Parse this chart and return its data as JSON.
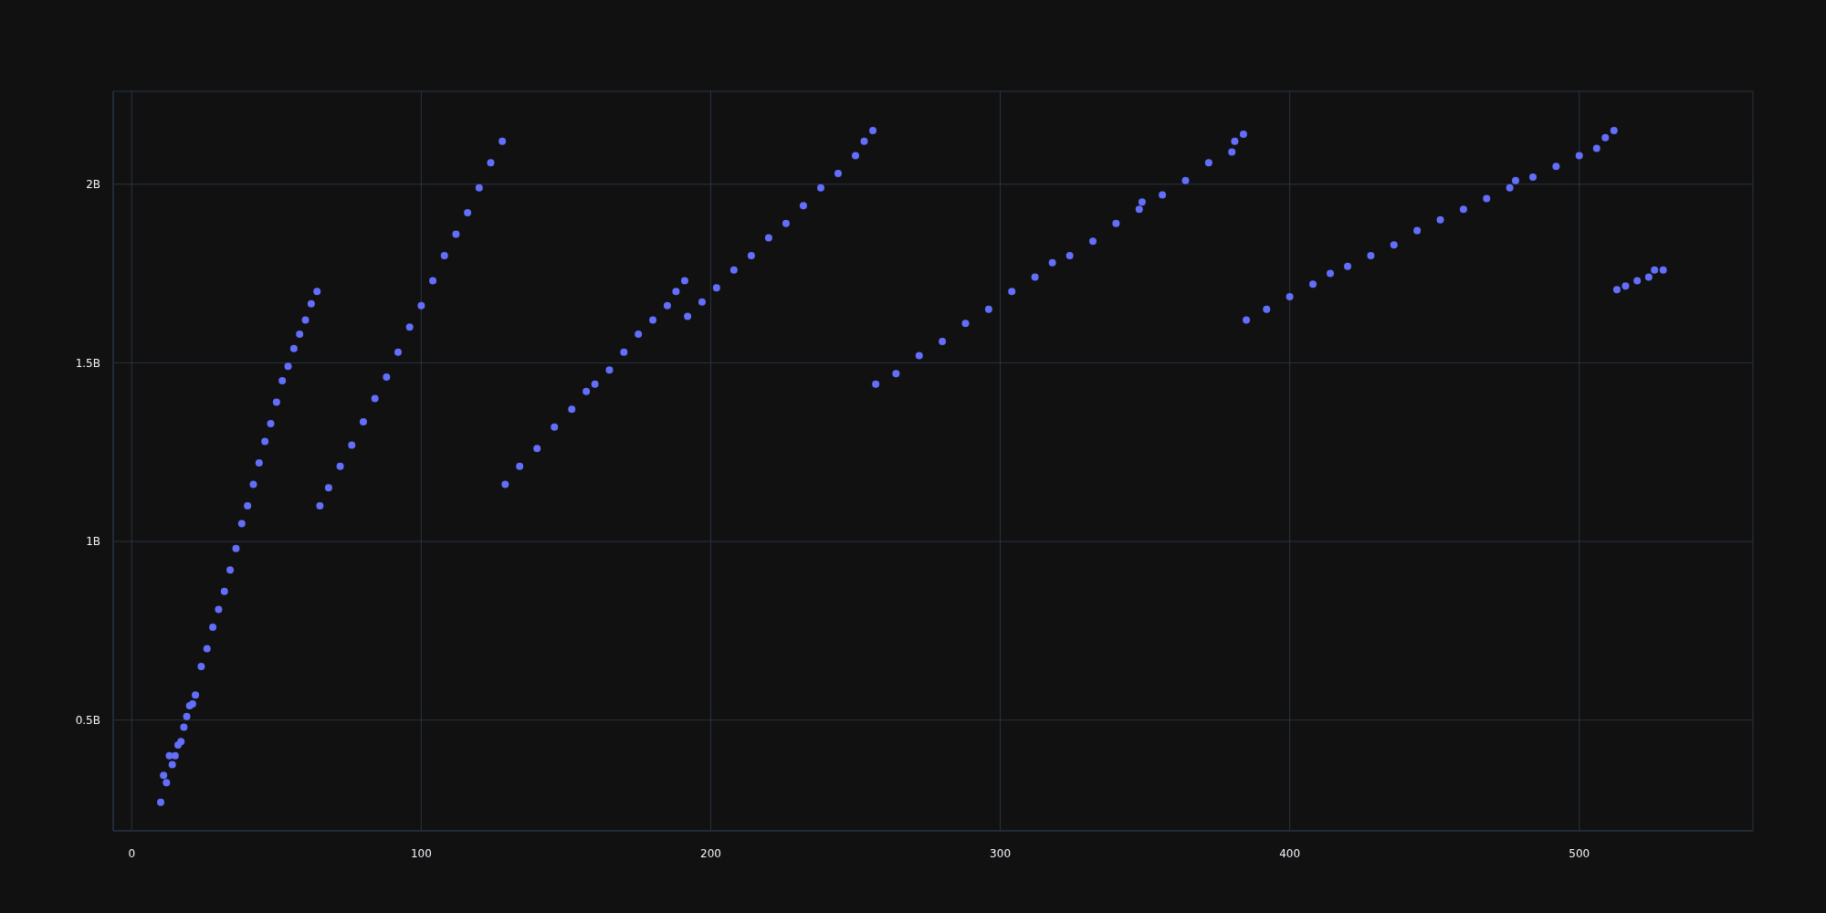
{
  "chart_data": {
    "type": "scatter",
    "grid": true,
    "marker": "circle",
    "color": "#636efa",
    "xlim": [
      -6.4,
      560
    ],
    "xticks": [
      0,
      100,
      200,
      300,
      400,
      500
    ],
    "ylim": [
      190000000.0,
      2260000000.0
    ],
    "yticks": [
      {
        "value": 500000000.0,
        "label": "0.5B"
      },
      {
        "value": 1000000000.0,
        "label": "1B"
      },
      {
        "value": 1500000000.0,
        "label": "1.5B"
      },
      {
        "value": 2000000000.0,
        "label": "2B"
      }
    ],
    "x": [
      10,
      11,
      12,
      13,
      14,
      15,
      16,
      17,
      18,
      19,
      20,
      21,
      22,
      24,
      26,
      28,
      30,
      32,
      34,
      36,
      38,
      40,
      42,
      44,
      46,
      48,
      50,
      52,
      54,
      56,
      58,
      60,
      62,
      64,
      65,
      68,
      72,
      76,
      80,
      84,
      88,
      92,
      96,
      100,
      104,
      108,
      112,
      116,
      120,
      124,
      128,
      129,
      134,
      140,
      146,
      152,
      157,
      160,
      165,
      170,
      175,
      180,
      185,
      188,
      191,
      192,
      197,
      202,
      208,
      214,
      220,
      226,
      232,
      238,
      244,
      250,
      253,
      256,
      257,
      264,
      272,
      280,
      288,
      296,
      304,
      312,
      318,
      324,
      332,
      340,
      348,
      349,
      356,
      364,
      372,
      380,
      381,
      384,
      385,
      392,
      400,
      408,
      414,
      420,
      428,
      436,
      444,
      452,
      460,
      468,
      476,
      478,
      484,
      492,
      500,
      506,
      509,
      512,
      513,
      516,
      520,
      524,
      526,
      529
    ],
    "values": [
      270000000.0,
      345000000.0,
      325000000.0,
      400000000.0,
      375000000.0,
      400000000.0,
      430000000.0,
      440000000.0,
      480000000.0,
      510000000.0,
      540000000.0,
      545000000.0,
      570000000.0,
      650000000.0,
      700000000.0,
      760000000.0,
      810000000.0,
      860000000.0,
      920000000.0,
      980000000.0,
      1050000000.0,
      1100000000.0,
      1160000000.0,
      1220000000.0,
      1280000000.0,
      1330000000.0,
      1390000000.0,
      1450000000.0,
      1490000000.0,
      1540000000.0,
      1580000000.0,
      1620000000.0,
      1665000000.0,
      1700000000.0,
      1100000000.0,
      1150000000.0,
      1210000000.0,
      1270000000.0,
      1335000000.0,
      1400000000.0,
      1460000000.0,
      1530000000.0,
      1600000000.0,
      1660000000.0,
      1730000000.0,
      1800000000.0,
      1860000000.0,
      1920000000.0,
      1990000000.0,
      2060000000.0,
      2120000000.0,
      1160000000.0,
      1210000000.0,
      1260000000.0,
      1320000000.0,
      1370000000.0,
      1420000000.0,
      1440000000.0,
      1480000000.0,
      1530000000.0,
      1580000000.0,
      1620000000.0,
      1660000000.0,
      1700000000.0,
      1730000000.0,
      1630000000.0,
      1670000000.0,
      1710000000.0,
      1760000000.0,
      1800000000.0,
      1850000000.0,
      1890000000.0,
      1940000000.0,
      1990000000.0,
      2030000000.0,
      2080000000.0,
      2120000000.0,
      2150000000.0,
      1440000000.0,
      1470000000.0,
      1520000000.0,
      1560000000.0,
      1610000000.0,
      1650000000.0,
      1700000000.0,
      1740000000.0,
      1780000000.0,
      1800000000.0,
      1840000000.0,
      1890000000.0,
      1930000000.0,
      1950000000.0,
      1970000000.0,
      2010000000.0,
      2060000000.0,
      2090000000.0,
      2120000000.0,
      2140000000.0,
      1620000000.0,
      1650000000.0,
      1685000000.0,
      1720000000.0,
      1750000000.0,
      1770000000.0,
      1800000000.0,
      1830000000.0,
      1870000000.0,
      1900000000.0,
      1930000000.0,
      1960000000.0,
      1990000000.0,
      2010000000.0,
      2020000000.0,
      2050000000.0,
      2080000000.0,
      2100000000.0,
      2130000000.0,
      2150000000.0,
      1705000000.0,
      1715000000.0,
      1730000000.0,
      1740000000.0,
      1760000000.0,
      1760000000.0
    ]
  }
}
